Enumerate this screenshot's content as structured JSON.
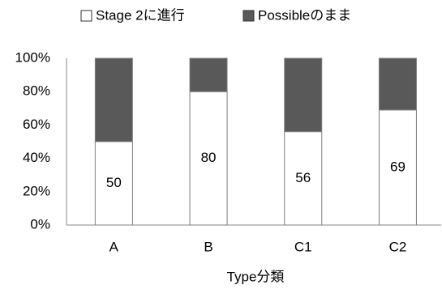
{
  "chart_data": {
    "type": "bar",
    "stacked": true,
    "categories": [
      "A",
      "B",
      "C1",
      "C2"
    ],
    "series": [
      {
        "name": "Stage 2に進行",
        "color": "#ffffff",
        "values": [
          50,
          80,
          56,
          69
        ],
        "show_labels": true
      },
      {
        "name": "Possibleのまま",
        "color": "#595959",
        "values": [
          50,
          20,
          44,
          31
        ],
        "show_labels": false
      }
    ],
    "x_label": "Type分類",
    "ylim": [
      0,
      100
    ],
    "yticks": [
      {
        "value": 0,
        "label": "0%"
      },
      {
        "value": 20,
        "label": "20%"
      },
      {
        "value": 40,
        "label": "40%"
      },
      {
        "value": 60,
        "label": "60%"
      },
      {
        "value": 80,
        "label": "80%"
      },
      {
        "value": 100,
        "label": "100%"
      }
    ],
    "grid": false,
    "legend": "top"
  }
}
